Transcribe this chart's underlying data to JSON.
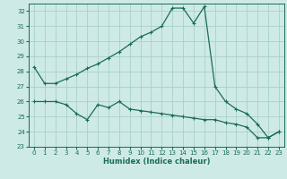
{
  "xlabel": "Humidex (Indice chaleur)",
  "bg_color": "#ceeae6",
  "grid_color": "#aacfca",
  "line_color": "#1a6b5a",
  "xlim": [
    -0.5,
    23.5
  ],
  "ylim": [
    23,
    32.5
  ],
  "yticks": [
    23,
    24,
    25,
    26,
    27,
    28,
    29,
    30,
    31,
    32
  ],
  "xticks": [
    0,
    1,
    2,
    3,
    4,
    5,
    6,
    7,
    8,
    9,
    10,
    11,
    12,
    13,
    14,
    15,
    16,
    17,
    18,
    19,
    20,
    21,
    22,
    23
  ],
  "line1_x": [
    0,
    1,
    2,
    3,
    4,
    5,
    6,
    7,
    8,
    9,
    10,
    11,
    12,
    13,
    14,
    15,
    16,
    17,
    18,
    19,
    20,
    21,
    22,
    23
  ],
  "line1_y": [
    28.3,
    27.2,
    27.2,
    27.5,
    27.8,
    28.2,
    28.5,
    28.9,
    29.3,
    29.8,
    30.3,
    30.6,
    31.0,
    32.2,
    32.2,
    31.2,
    32.3,
    27.0,
    26.0,
    25.5,
    25.2,
    24.5,
    23.6,
    24.0
  ],
  "line2_x": [
    0,
    1,
    2,
    3,
    4,
    5,
    6,
    7,
    8,
    9,
    10,
    11,
    12,
    13,
    14,
    15,
    16,
    17,
    18,
    19,
    20,
    21,
    22,
    23
  ],
  "line2_y": [
    26.0,
    26.0,
    26.0,
    25.8,
    25.2,
    24.8,
    25.8,
    25.6,
    26.0,
    25.5,
    25.4,
    25.3,
    25.2,
    25.1,
    25.0,
    24.9,
    24.8,
    24.8,
    24.6,
    24.5,
    24.3,
    23.6,
    23.6,
    24.0
  ]
}
